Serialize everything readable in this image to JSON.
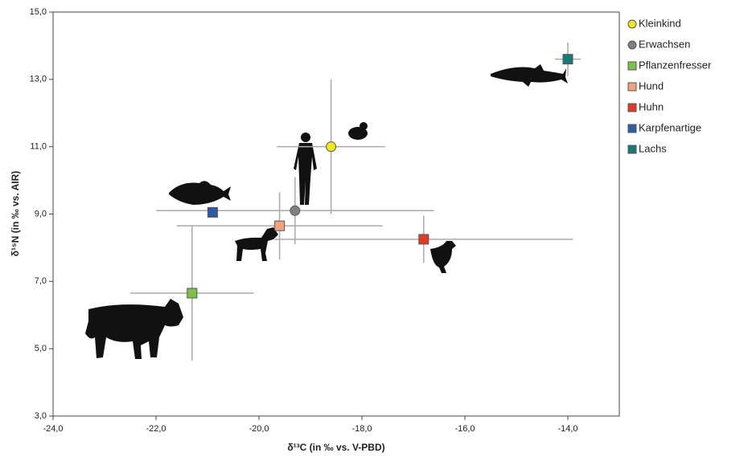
{
  "chart_data": {
    "type": "scatter",
    "xlabel": "δ¹³C (in ‰ vs. V-PBD)",
    "ylabel": "δ¹⁵N (in ‰ vs. AIR)",
    "xlim": [
      -24,
      -13
    ],
    "ylim": [
      3,
      15
    ],
    "xticks": [
      {
        "value": -24,
        "label": "-24,0"
      },
      {
        "value": -22,
        "label": "-22,0"
      },
      {
        "value": -20,
        "label": "-20,0"
      },
      {
        "value": -18,
        "label": "-18,0"
      },
      {
        "value": -16,
        "label": "-16,0"
      },
      {
        "value": -14,
        "label": "-14,0"
      }
    ],
    "yticks": [
      {
        "value": 3,
        "label": "3,0"
      },
      {
        "value": 5,
        "label": "5,0"
      },
      {
        "value": 7,
        "label": "7,0"
      },
      {
        "value": 9,
        "label": "9,0"
      },
      {
        "value": 11,
        "label": "11,0"
      },
      {
        "value": 13,
        "label": "13,0"
      },
      {
        "value": 15,
        "label": "15,0"
      }
    ],
    "series": [
      {
        "name": "Kleinkind",
        "color": "#f5e61a",
        "marker": "circle",
        "x": [
          -18.6
        ],
        "values": [
          11.0
        ],
        "xerr": [
          1.05
        ],
        "yerr": [
          2.0
        ]
      },
      {
        "name": "Erwachsen",
        "color": "#808080",
        "marker": "circle",
        "x": [
          -19.3
        ],
        "values": [
          9.1
        ],
        "xerr": [
          2.7
        ],
        "yerr": [
          1.0
        ]
      },
      {
        "name": "Pflanzenfresser",
        "color": "#7cc24a",
        "marker": "square",
        "x": [
          -21.3
        ],
        "values": [
          6.65
        ],
        "xerr": [
          1.2
        ],
        "yerr": [
          2.0
        ]
      },
      {
        "name": "Hund",
        "color": "#f5a27a",
        "marker": "square",
        "x": [
          -19.6
        ],
        "values": [
          8.65
        ],
        "xerr": [
          2.0
        ],
        "yerr": [
          1.0
        ]
      },
      {
        "name": "Huhn",
        "color": "#e03a24",
        "marker": "square",
        "x": [
          -16.8
        ],
        "values": [
          8.25
        ],
        "xerr": [
          2.9
        ],
        "yerr": [
          0.7
        ]
      },
      {
        "name": "Karpfenartige",
        "color": "#2b5aa8",
        "marker": "square",
        "x": [
          -20.9
        ],
        "values": [
          9.05
        ]
      },
      {
        "name": "Lachs",
        "color": "#177a78",
        "marker": "square",
        "x": [
          -14.0
        ],
        "values": [
          13.6
        ],
        "xerr": [
          0.25
        ],
        "yerr": [
          0.5
        ]
      }
    ]
  }
}
